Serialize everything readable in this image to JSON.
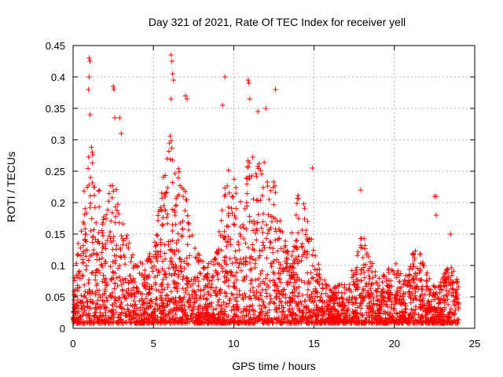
{
  "chart_data": {
    "type": "scatter",
    "title": "Day 321 of 2021, Rate Of TEC Index for receiver yell",
    "xlabel": "GPS time / hours",
    "ylabel": "ROTI / TECUs",
    "xlim": [
      0,
      25
    ],
    "ylim": [
      0,
      0.45
    ],
    "xticks": [
      0,
      5,
      10,
      15,
      20,
      25
    ],
    "xtick_labels": [
      "0",
      "5",
      "10",
      "15",
      "20",
      "25"
    ],
    "yticks": [
      0,
      0.05,
      0.1,
      0.15,
      0.2,
      0.25,
      0.3,
      0.35,
      0.4,
      0.45
    ],
    "ytick_labels": [
      "0",
      "0.05",
      "0.1",
      "0.15",
      "0.2",
      "0.25",
      "0.3",
      "0.35",
      "0.4",
      "0.45"
    ],
    "grid": true,
    "marker": "+",
    "color": "#ff0000",
    "envelope": {
      "x": [
        0,
        0.5,
        1.0,
        1.5,
        2.0,
        2.5,
        3.0,
        3.5,
        4.0,
        4.5,
        5.0,
        5.5,
        6.0,
        6.5,
        7.0,
        7.5,
        8.0,
        8.5,
        9.0,
        9.5,
        10.0,
        10.5,
        11.0,
        11.5,
        12.0,
        12.5,
        13.0,
        13.5,
        14.0,
        14.5,
        15.0,
        15.5,
        16.0,
        16.5,
        17.0,
        17.5,
        18.0,
        18.5,
        19.0,
        19.5,
        20.0,
        20.5,
        21.0,
        21.5,
        22.0,
        22.5,
        23.0,
        23.5,
        24.0
      ],
      "y": [
        0.06,
        0.16,
        0.3,
        0.22,
        0.16,
        0.24,
        0.18,
        0.12,
        0.09,
        0.1,
        0.12,
        0.2,
        0.3,
        0.26,
        0.2,
        0.12,
        0.1,
        0.09,
        0.12,
        0.24,
        0.22,
        0.2,
        0.26,
        0.24,
        0.26,
        0.22,
        0.14,
        0.12,
        0.2,
        0.18,
        0.12,
        0.07,
        0.06,
        0.06,
        0.06,
        0.09,
        0.14,
        0.1,
        0.07,
        0.08,
        0.1,
        0.07,
        0.1,
        0.12,
        0.08,
        0.06,
        0.07,
        0.1,
        0.06
      ]
    },
    "outliers": [
      {
        "x": 1.0,
        "y": 0.43
      },
      {
        "x": 1.05,
        "y": 0.425
      },
      {
        "x": 1.0,
        "y": 0.4
      },
      {
        "x": 0.95,
        "y": 0.38
      },
      {
        "x": 1.05,
        "y": 0.34
      },
      {
        "x": 2.5,
        "y": 0.385
      },
      {
        "x": 2.55,
        "y": 0.38
      },
      {
        "x": 2.6,
        "y": 0.335
      },
      {
        "x": 3.0,
        "y": 0.31
      },
      {
        "x": 2.9,
        "y": 0.335
      },
      {
        "x": 6.1,
        "y": 0.435
      },
      {
        "x": 6.15,
        "y": 0.425
      },
      {
        "x": 6.2,
        "y": 0.405
      },
      {
        "x": 6.25,
        "y": 0.395
      },
      {
        "x": 6.1,
        "y": 0.365
      },
      {
        "x": 7.0,
        "y": 0.37
      },
      {
        "x": 7.1,
        "y": 0.365
      },
      {
        "x": 9.3,
        "y": 0.355
      },
      {
        "x": 9.45,
        "y": 0.4
      },
      {
        "x": 10.9,
        "y": 0.395
      },
      {
        "x": 10.95,
        "y": 0.39
      },
      {
        "x": 11.0,
        "y": 0.365
      },
      {
        "x": 11.5,
        "y": 0.345
      },
      {
        "x": 12.0,
        "y": 0.35
      },
      {
        "x": 12.6,
        "y": 0.38
      },
      {
        "x": 14.9,
        "y": 0.255
      },
      {
        "x": 17.9,
        "y": 0.22
      },
      {
        "x": 22.5,
        "y": 0.21
      },
      {
        "x": 22.6,
        "y": 0.21
      },
      {
        "x": 22.6,
        "y": 0.18
      },
      {
        "x": 23.5,
        "y": 0.15
      }
    ]
  }
}
